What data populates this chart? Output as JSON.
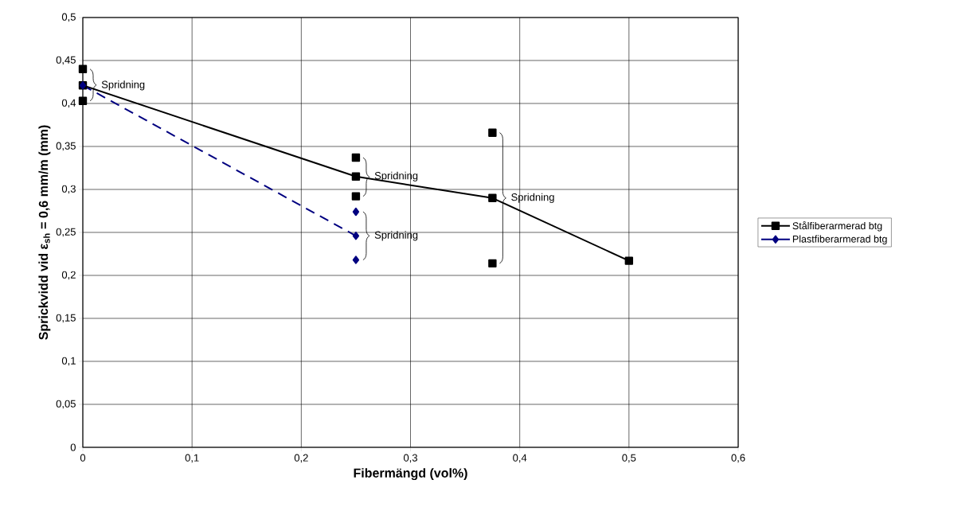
{
  "chart_data": {
    "type": "line",
    "xlabel": "Fibermängd (vol%)",
    "ylabel": "Sprickvidd vid ε$_{sh}$ = 0,6 mm/m (mm)",
    "xlim": [
      0,
      0.6
    ],
    "ylim": [
      0,
      0.5
    ],
    "xticks": [
      0,
      {
        "value": 0.1,
        "label": "0,1"
      },
      {
        "value": 0.2,
        "label": "0,2"
      },
      {
        "value": 0.3,
        "label": "0,3"
      },
      {
        "value": 0.4,
        "label": "0,4"
      },
      {
        "value": 0.5,
        "label": "0,5"
      },
      {
        "value": 0.6,
        "label": "0,6"
      }
    ],
    "yticks": [
      0,
      {
        "value": 0.05,
        "label": "0,05"
      },
      {
        "value": 0.1,
        "label": "0,1"
      },
      {
        "value": 0.15,
        "label": "0,15"
      },
      {
        "value": 0.2,
        "label": "0,2"
      },
      {
        "value": 0.25,
        "label": "0,25"
      },
      {
        "value": 0.3,
        "label": "0,3"
      },
      {
        "value": 0.35,
        "label": "0,35"
      },
      {
        "value": 0.4,
        "label": "0,4"
      },
      {
        "value": 0.45,
        "label": "0,45"
      },
      {
        "value": 0.5,
        "label": "0,5"
      }
    ],
    "grid": true,
    "legend": "right",
    "series": [
      {
        "name": "Stålfiberarmerad btg",
        "color": "#000000",
        "marker": "square",
        "line_style": "solid",
        "x": [
          0,
          0.25,
          0.375,
          0.5
        ],
        "values": [
          0.421,
          0.315,
          0.29,
          0.217
        ]
      },
      {
        "name": "Plastfiberarmerad btg",
        "color": "#000080",
        "marker": "diamond",
        "line_style": "dashed",
        "x": [
          0,
          0.25
        ],
        "values": [
          0.421,
          0.246
        ]
      },
      {
        "type": "scatter",
        "color": "#000000",
        "marker": "square",
        "x": [
          0,
          0,
          0.25,
          0.25,
          0.375,
          0.375
        ],
        "values": [
          0.44,
          0.403,
          0.337,
          0.292,
          0.366,
          0.214
        ]
      },
      {
        "type": "scatter",
        "color": "#000080",
        "marker": "diamond",
        "x": [
          0.25,
          0.25
        ],
        "values": [
          0.274,
          0.218
        ]
      }
    ],
    "annotations": [
      {
        "text": "Spridning",
        "x": 0,
        "y": 0.421
      },
      {
        "text": "Spridning",
        "x": 0.25,
        "y": 0.315
      },
      {
        "text": "Spridning",
        "x": 0.375,
        "y": 0.29
      },
      {
        "text": "Spridning",
        "x": 0.25,
        "y": 0.246
      }
    ]
  }
}
